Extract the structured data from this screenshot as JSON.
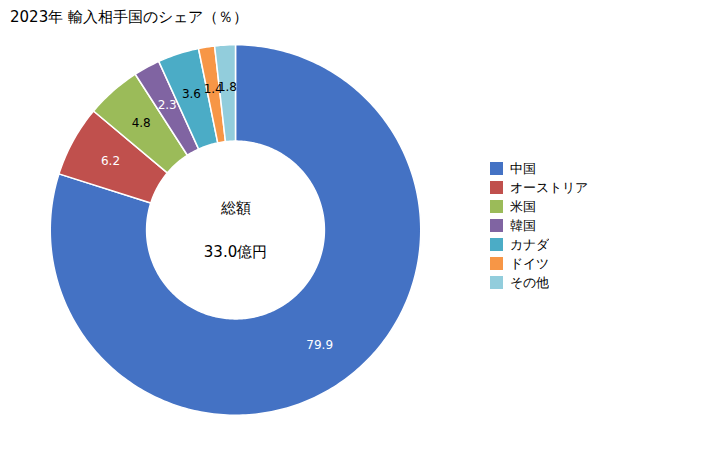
{
  "chart_data": {
    "type": "pie",
    "title": "2023年 輸入相手国のシェア（％）",
    "categories": [
      "中国",
      "オーストリア",
      "米国",
      "韓国",
      "カナダ",
      "ドイツ",
      "その他"
    ],
    "values": [
      79.9,
      6.2,
      4.8,
      2.3,
      3.6,
      1.4,
      1.8
    ],
    "colors": [
      "#4472C4",
      "#C0504D",
      "#9BBB59",
      "#8064A2",
      "#4BACC6",
      "#F79646",
      "#92CDDC"
    ],
    "annotations": [
      "総額",
      "33.0億円"
    ],
    "data_labels": true,
    "legend": "right"
  }
}
